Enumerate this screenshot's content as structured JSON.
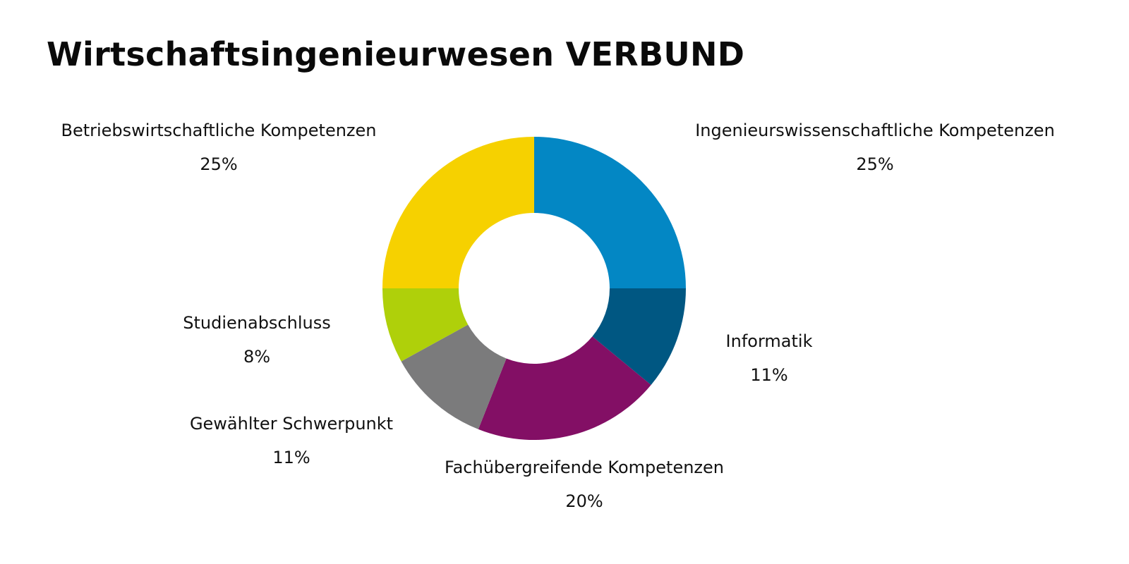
{
  "chart_data": {
    "type": "pie",
    "title": "Wirtschaftsingenieurwesen VERBUND",
    "donut": true,
    "slices": [
      {
        "label": "Ingenieurswissenschaftliche Kompetenzen",
        "value": 25,
        "display": "25%",
        "color": "#0387c4"
      },
      {
        "label": "Informatik",
        "value": 11,
        "display": "11%",
        "color": "#005782"
      },
      {
        "label": "Fachübergreifende Kompetenzen",
        "value": 20,
        "display": "20%",
        "color": "#830f65"
      },
      {
        "label": "Gewählter Schwerpunkt",
        "value": 11,
        "display": "11%",
        "color": "#7b7b7c"
      },
      {
        "label": "Studienabschluss",
        "value": 8,
        "display": "8%",
        "color": "#afd00a"
      },
      {
        "label": "Betriebswirtschaftliche Kompetenzen",
        "value": 25,
        "display": "25%",
        "color": "#f6d100"
      }
    ]
  }
}
